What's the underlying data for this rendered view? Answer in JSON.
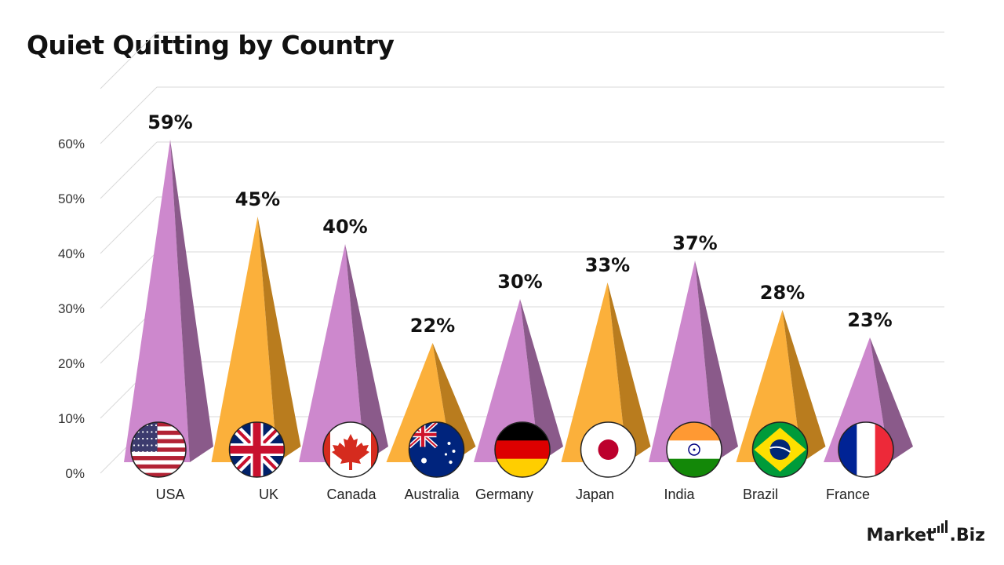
{
  "title": "Quiet Quitting by Country",
  "brand": {
    "name_left": "Market",
    "name_right": "Biz",
    "dot": "."
  },
  "chart_data": {
    "type": "bar",
    "title": "Quiet Quitting by Country",
    "categories": [
      "USA",
      "UK",
      "Canada",
      "Australia",
      "Germany",
      "Japan",
      "India",
      "Brazil",
      "France"
    ],
    "values": [
      59,
      45,
      40,
      22,
      30,
      33,
      37,
      28,
      23
    ],
    "value_labels": [
      "59%",
      "45%",
      "40%",
      "22%",
      "30%",
      "33%",
      "37%",
      "28%",
      "23%"
    ],
    "ylim": [
      0,
      60
    ],
    "yticks": [
      "0%",
      "10%",
      "20%",
      "30%",
      "40%",
      "50%",
      "60%"
    ],
    "grid": true,
    "icons": [
      "usa-flag-icon",
      "uk-flag-icon",
      "canada-flag-icon",
      "australia-flag-icon",
      "germany-flag-icon",
      "japan-flag-icon",
      "india-flag-icon",
      "brazil-flag-icon",
      "france-flag-icon"
    ],
    "colors": {
      "purple": "#cd88cd",
      "purple_dark": "#8a5a8a",
      "orange": "#fbb03b",
      "orange_dark": "#b97c1e"
    }
  }
}
